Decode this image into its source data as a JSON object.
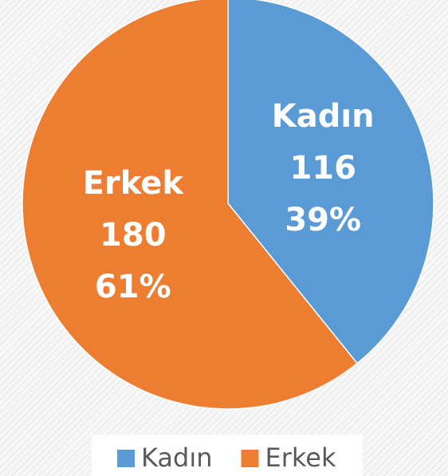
{
  "chart_data": {
    "type": "pie",
    "categories": [
      "Kadın",
      "Erkek"
    ],
    "values": [
      116,
      180
    ],
    "percent_labels": [
      "39%",
      "61%"
    ],
    "colors": [
      "#5b9bd5",
      "#ed7d31"
    ],
    "legend": "bottom"
  }
}
